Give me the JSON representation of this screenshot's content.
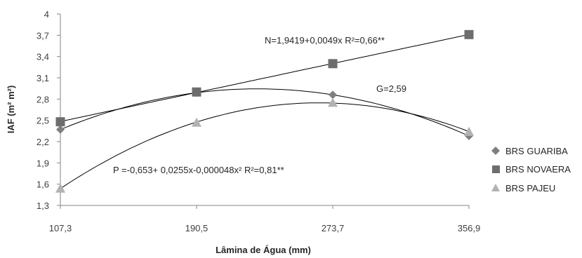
{
  "chart_data": {
    "type": "scatter",
    "xlabel": "Lâmina de Água (mm)",
    "ylabel": "IAF (m² m²)",
    "x": [
      107.3,
      190.5,
      273.7,
      356.9
    ],
    "x_tick_labels": [
      "107,3",
      "190,5",
      "273,7",
      "356,9"
    ],
    "ylim": [
      1.3,
      4.0
    ],
    "y_ticks": [
      1.3,
      1.6,
      1.9,
      2.2,
      2.5,
      2.8,
      3.1,
      3.4,
      3.7,
      4.0
    ],
    "y_tick_labels": [
      "1,3",
      "1,6",
      "1,9",
      "2,2",
      "2,5",
      "2,8",
      "3,1",
      "3,4",
      "3,7",
      "4"
    ],
    "grid": false,
    "legend_position": "right",
    "series": [
      {
        "name": "BRS GUARIBA",
        "marker": "diamond",
        "color": "#7f7f7f",
        "values": [
          2.37,
          2.89,
          2.86,
          2.28
        ]
      },
      {
        "name": "BRS NOVAERA",
        "marker": "square",
        "color": "#6d6d6d",
        "values": [
          2.48,
          2.9,
          3.3,
          3.71
        ]
      },
      {
        "name": "BRS PAJEU",
        "marker": "triangle",
        "color": "#b2b2b2",
        "values": [
          1.54,
          2.47,
          2.75,
          2.34
        ]
      }
    ],
    "annotations": [
      {
        "text": "N=1,9419+0,0049x R²=0,66**"
      },
      {
        "text": "G=2,59"
      },
      {
        "text": "P =-0,653+ 0,0255x-0,000048x² R²=0,81**"
      }
    ]
  }
}
